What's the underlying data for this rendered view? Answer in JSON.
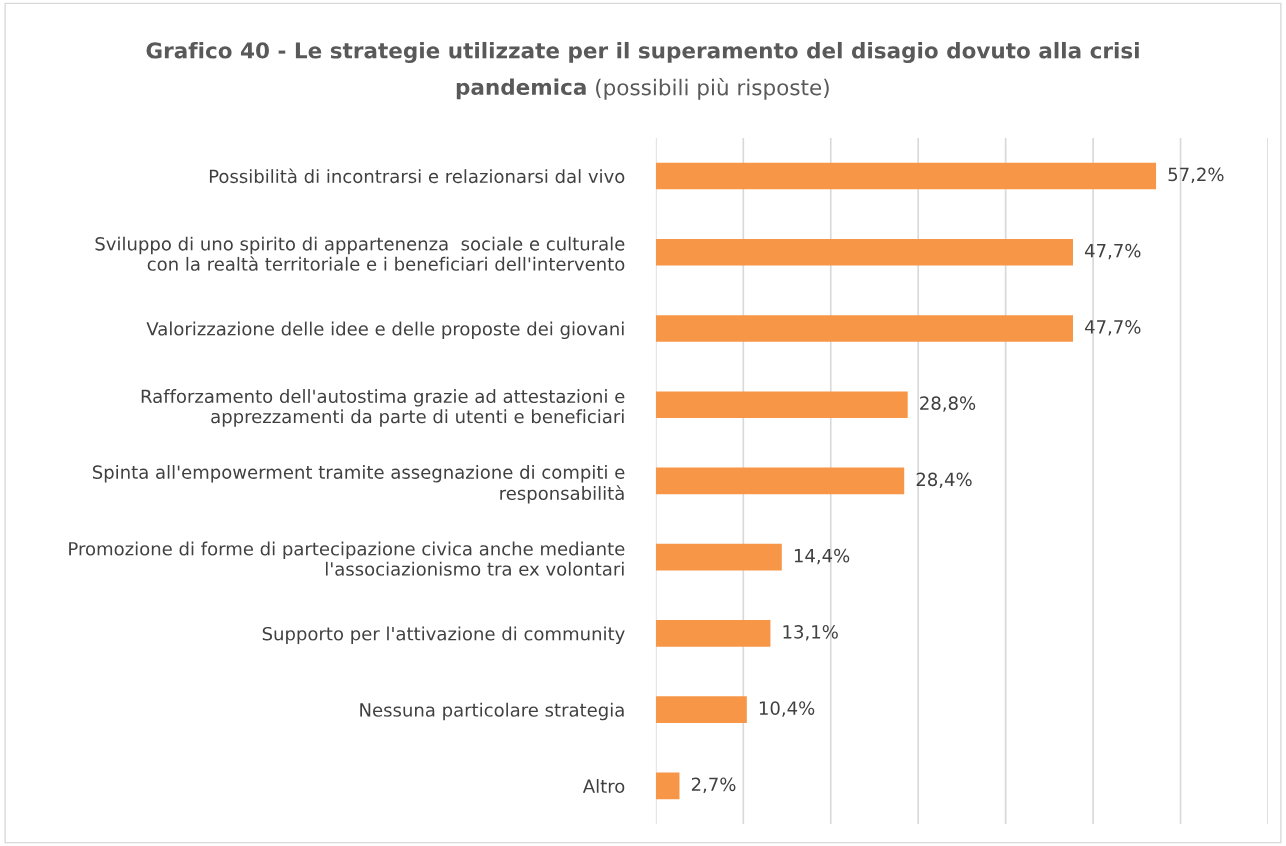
{
  "chart_data": {
    "type": "bar",
    "orientation": "horizontal",
    "title": "Grafico 40 - Le strategie utilizzate per il superamento del disagio dovuto alla crisi pandemica",
    "subtitle": "(possibili più risposte)",
    "categories": [
      "Possibilità di incontrarsi e relazionarsi dal vivo",
      "Sviluppo di uno spirito di appartenenza  sociale e culturale con la realtà territoriale e i beneficiari dell'intervento",
      "Valorizzazione delle idee e delle proposte dei giovani",
      "Rafforzamento dell'autostima grazie ad attestazioni e apprezzamenti da parte di utenti e beneficiari",
      "Spinta all'empowerment tramite assegnazione di compiti e responsabilità",
      "Promozione di forme di partecipazione civica anche mediante l'associazionismo tra ex volontari",
      "Supporto per l'attivazione di community",
      "Nessuna particolare strategia",
      "Altro"
    ],
    "values": [
      57.2,
      47.7,
      47.7,
      28.8,
      28.4,
      14.4,
      13.1,
      10.4,
      2.7
    ],
    "value_labels": [
      "57,2%",
      "47,7%",
      "47,7%",
      "28,8%",
      "28,4%",
      "14,4%",
      "13,1%",
      "10,4%",
      "2,7%"
    ],
    "color": "#f79646",
    "xlim": [
      0,
      70
    ],
    "xticks": [
      {
        "value": 0,
        "label": null
      },
      {
        "value": 10,
        "label": null
      },
      {
        "value": 20,
        "label": null
      },
      {
        "value": 30,
        "label": null
      },
      {
        "value": 40,
        "label": null
      },
      {
        "value": 50,
        "label": null
      },
      {
        "value": 60,
        "label": null
      },
      {
        "value": 70,
        "label": null
      }
    ],
    "grid": "x",
    "tick_labels": "y",
    "legend": false
  }
}
